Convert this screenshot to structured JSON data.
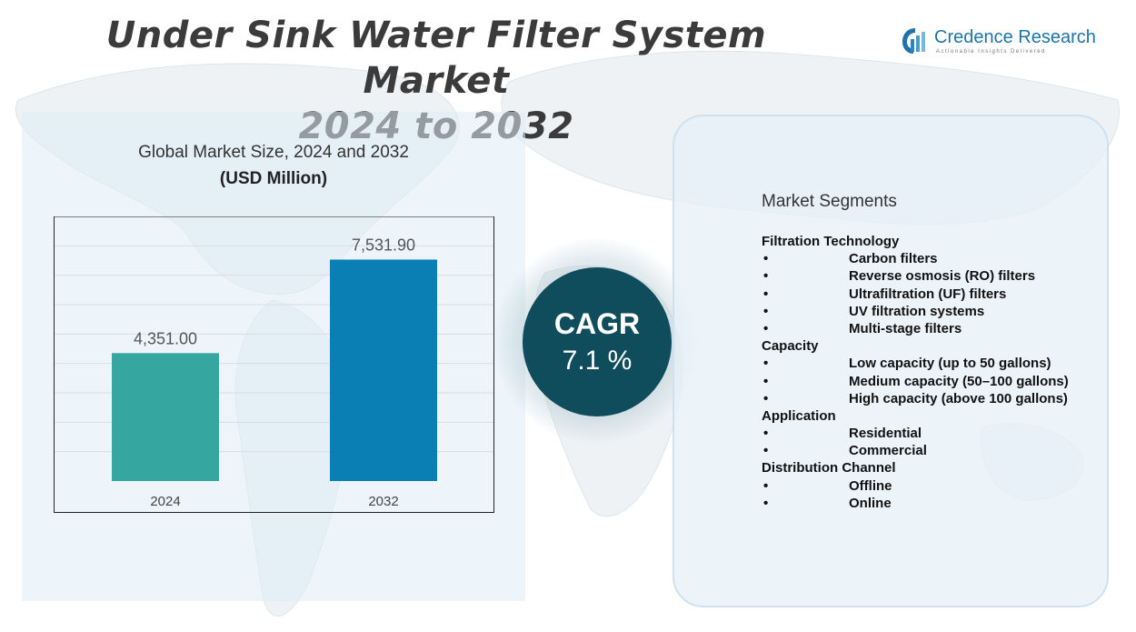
{
  "title": {
    "line1": "Under Sink Water Filter System Market",
    "line2": "2024 to 2032"
  },
  "logo": {
    "name": "Credence Research",
    "tagline": "Actionable Insights Delivered"
  },
  "chart_subtitle": {
    "line1": "Global Market Size, 2024 and 2032",
    "line2": "(USD Million)"
  },
  "chart_data": {
    "type": "bar",
    "categories": [
      "2024",
      "2032"
    ],
    "values": [
      4351.0,
      7531.9
    ],
    "value_labels": [
      "4,351.00",
      "7,531.90"
    ],
    "colors": [
      "#35a6a0",
      "#0a7fb4"
    ],
    "ylim": [
      0,
      9000
    ],
    "grid": true,
    "title": "Global Market Size, 2024 and 2032",
    "ylabel": "(USD Million)"
  },
  "cagr": {
    "label": "CAGR",
    "value": "7.1 %"
  },
  "segments": {
    "title": "Market Segments",
    "groups": [
      {
        "name": "Filtration Technology",
        "items": [
          "Carbon filters",
          "Reverse osmosis (RO) filters",
          "Ultrafiltration (UF) filters",
          "UV filtration systems",
          "Multi-stage filters"
        ]
      },
      {
        "name": "Capacity",
        "items": [
          "Low capacity (up to 50 gallons)",
          "Medium capacity (50–100 gallons)",
          "High capacity (above 100 gallons)"
        ]
      },
      {
        "name": "Application",
        "items": [
          "Residential",
          "Commercial"
        ]
      },
      {
        "name": "Distribution Channel",
        "items": [
          "Offline",
          "Online"
        ]
      }
    ]
  }
}
